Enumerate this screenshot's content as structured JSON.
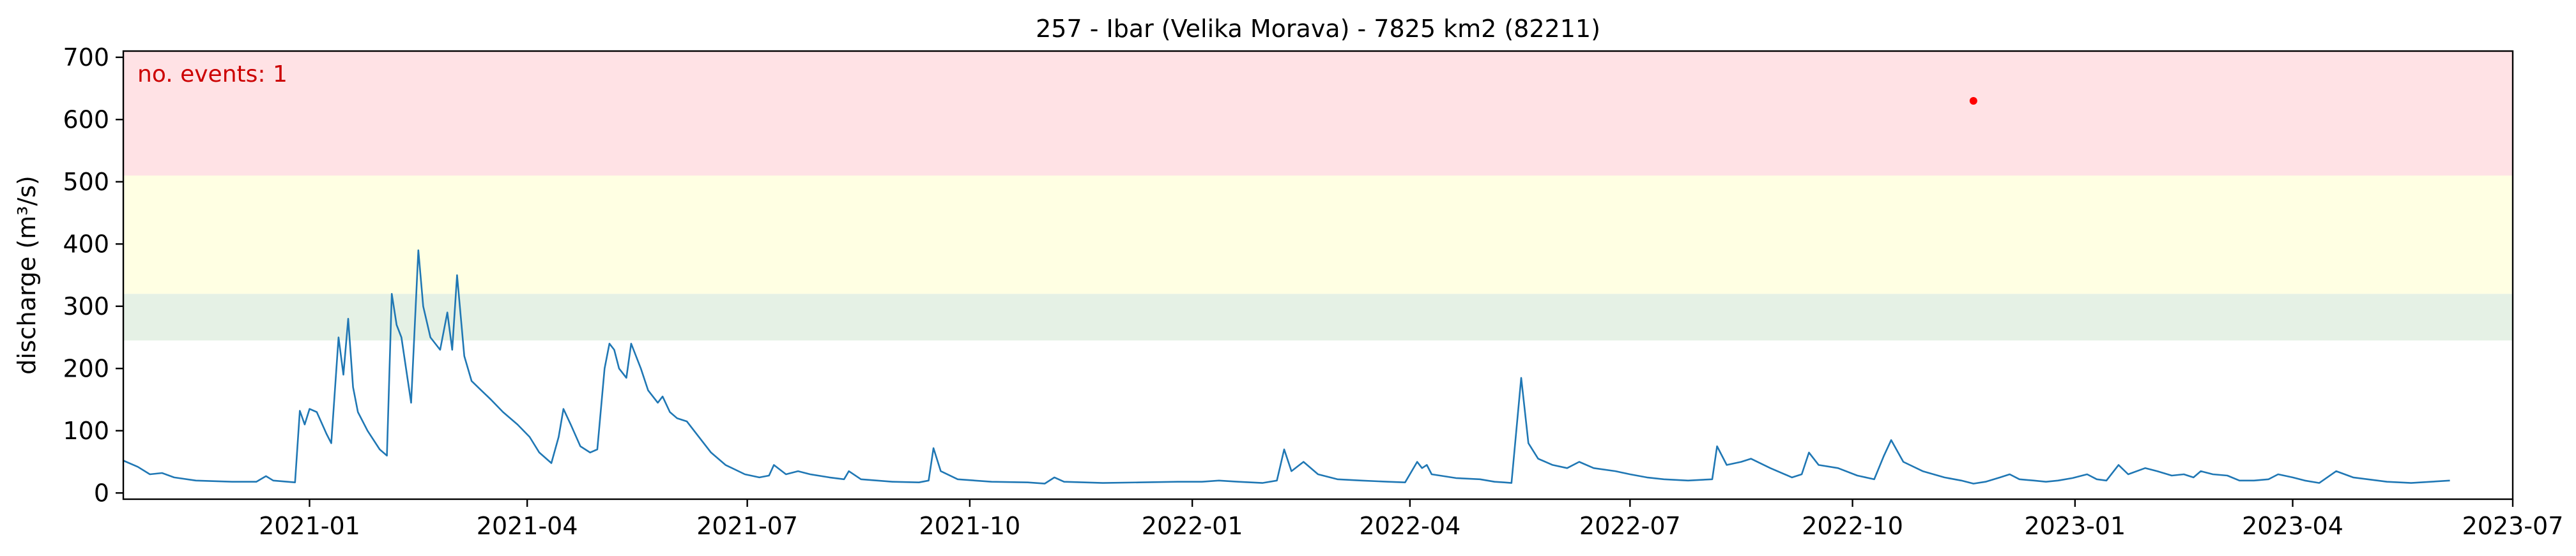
{
  "chart_data": {
    "type": "line",
    "title": "257 - Ibar (Velika Morava) - 7825 km2 (82211)",
    "xlabel": "",
    "ylabel": "discharge (m³/s)",
    "ylim": [
      -10,
      710
    ],
    "xlim": [
      "2020-10-16",
      "2023-07-01"
    ],
    "x_ticks": [
      {
        "date": "2021-01-01",
        "label": "2021-01"
      },
      {
        "date": "2021-04-01",
        "label": "2021-04"
      },
      {
        "date": "2021-07-01",
        "label": "2021-07"
      },
      {
        "date": "2021-10-01",
        "label": "2021-10"
      },
      {
        "date": "2022-01-01",
        "label": "2022-01"
      },
      {
        "date": "2022-04-01",
        "label": "2022-04"
      },
      {
        "date": "2022-07-01",
        "label": "2022-07"
      },
      {
        "date": "2022-10-01",
        "label": "2022-10"
      },
      {
        "date": "2023-01-01",
        "label": "2023-01"
      },
      {
        "date": "2023-04-01",
        "label": "2023-04"
      },
      {
        "date": "2023-07-01",
        "label": "2023-07"
      }
    ],
    "y_ticks": [
      0,
      100,
      200,
      300,
      400,
      500,
      600,
      700
    ],
    "grid": false,
    "threshold_bands": [
      {
        "from": 245,
        "to": 320,
        "color": "#e5f1e5"
      },
      {
        "from": 320,
        "to": 510,
        "color": "#ffffe3"
      },
      {
        "from": 510,
        "to": 710,
        "color": "#ffe2e5"
      }
    ],
    "annotation": {
      "text": "no. events: 1",
      "color": "#cc0000",
      "position": "top-left"
    },
    "events": [
      {
        "date": "2022-11-20",
        "value": 630,
        "color": "#ff0000"
      }
    ],
    "line_color": "#1f77b4",
    "series": [
      {
        "values": [
          [
            "2020-10-16",
            52
          ],
          [
            "2020-10-22",
            42
          ],
          [
            "2020-10-27",
            30
          ],
          [
            "2020-11-01",
            32
          ],
          [
            "2020-11-06",
            25
          ],
          [
            "2020-11-15",
            20
          ],
          [
            "2020-11-30",
            18
          ],
          [
            "2020-12-10",
            18
          ],
          [
            "2020-12-14",
            27
          ],
          [
            "2020-12-17",
            20
          ],
          [
            "2020-12-26",
            17
          ],
          [
            "2020-12-28",
            132
          ],
          [
            "2020-12-30",
            110
          ],
          [
            "2021-01-01",
            135
          ],
          [
            "2021-01-04",
            130
          ],
          [
            "2021-01-08",
            95
          ],
          [
            "2021-01-10",
            80
          ],
          [
            "2021-01-13",
            250
          ],
          [
            "2021-01-15",
            190
          ],
          [
            "2021-01-17",
            280
          ],
          [
            "2021-01-19",
            170
          ],
          [
            "2021-01-21",
            130
          ],
          [
            "2021-01-25",
            100
          ],
          [
            "2021-01-30",
            70
          ],
          [
            "2021-02-02",
            60
          ],
          [
            "2021-02-04",
            320
          ],
          [
            "2021-02-06",
            270
          ],
          [
            "2021-02-08",
            250
          ],
          [
            "2021-02-12",
            145
          ],
          [
            "2021-02-15",
            390
          ],
          [
            "2021-02-17",
            300
          ],
          [
            "2021-02-20",
            250
          ],
          [
            "2021-02-24",
            230
          ],
          [
            "2021-02-27",
            290
          ],
          [
            "2021-03-01",
            230
          ],
          [
            "2021-03-03",
            350
          ],
          [
            "2021-03-06",
            220
          ],
          [
            "2021-03-09",
            180
          ],
          [
            "2021-03-13",
            165
          ],
          [
            "2021-03-17",
            150
          ],
          [
            "2021-03-22",
            130
          ],
          [
            "2021-03-28",
            110
          ],
          [
            "2021-04-02",
            90
          ],
          [
            "2021-04-06",
            65
          ],
          [
            "2021-04-11",
            48
          ],
          [
            "2021-04-14",
            90
          ],
          [
            "2021-04-16",
            135
          ],
          [
            "2021-04-19",
            110
          ],
          [
            "2021-04-23",
            75
          ],
          [
            "2021-04-27",
            65
          ],
          [
            "2021-04-30",
            70
          ],
          [
            "2021-05-03",
            200
          ],
          [
            "2021-05-05",
            240
          ],
          [
            "2021-05-07",
            230
          ],
          [
            "2021-05-09",
            200
          ],
          [
            "2021-05-12",
            185
          ],
          [
            "2021-05-14",
            240
          ],
          [
            "2021-05-18",
            200
          ],
          [
            "2021-05-21",
            165
          ],
          [
            "2021-05-25",
            145
          ],
          [
            "2021-05-27",
            155
          ],
          [
            "2021-05-30",
            130
          ],
          [
            "2021-06-02",
            120
          ],
          [
            "2021-06-06",
            115
          ],
          [
            "2021-06-10",
            95
          ],
          [
            "2021-06-16",
            65
          ],
          [
            "2021-06-22",
            45
          ],
          [
            "2021-06-30",
            30
          ],
          [
            "2021-07-06",
            25
          ],
          [
            "2021-07-10",
            28
          ],
          [
            "2021-07-12",
            45
          ],
          [
            "2021-07-17",
            30
          ],
          [
            "2021-07-22",
            35
          ],
          [
            "2021-07-27",
            30
          ],
          [
            "2021-08-04",
            25
          ],
          [
            "2021-08-10",
            22
          ],
          [
            "2021-08-12",
            35
          ],
          [
            "2021-08-17",
            22
          ],
          [
            "2021-08-30",
            18
          ],
          [
            "2021-09-10",
            17
          ],
          [
            "2021-09-14",
            20
          ],
          [
            "2021-09-16",
            72
          ],
          [
            "2021-09-19",
            35
          ],
          [
            "2021-09-26",
            22
          ],
          [
            "2021-10-10",
            18
          ],
          [
            "2021-10-25",
            17
          ],
          [
            "2021-11-01",
            15
          ],
          [
            "2021-11-05",
            25
          ],
          [
            "2021-11-09",
            18
          ],
          [
            "2021-11-25",
            16
          ],
          [
            "2021-12-10",
            17
          ],
          [
            "2021-12-26",
            18
          ],
          [
            "2022-01-05",
            18
          ],
          [
            "2022-01-12",
            20
          ],
          [
            "2022-01-20",
            18
          ],
          [
            "2022-01-30",
            16
          ],
          [
            "2022-02-05",
            20
          ],
          [
            "2022-02-08",
            70
          ],
          [
            "2022-02-11",
            35
          ],
          [
            "2022-02-16",
            50
          ],
          [
            "2022-02-22",
            30
          ],
          [
            "2022-03-02",
            22
          ],
          [
            "2022-03-12",
            20
          ],
          [
            "2022-03-23",
            18
          ],
          [
            "2022-03-30",
            17
          ],
          [
            "2022-04-04",
            50
          ],
          [
            "2022-04-06",
            40
          ],
          [
            "2022-04-08",
            45
          ],
          [
            "2022-04-10",
            30
          ],
          [
            "2022-04-20",
            24
          ],
          [
            "2022-04-30",
            22
          ],
          [
            "2022-05-06",
            18
          ],
          [
            "2022-05-10",
            17
          ],
          [
            "2022-05-13",
            16
          ],
          [
            "2022-05-17",
            185
          ],
          [
            "2022-05-20",
            80
          ],
          [
            "2022-05-24",
            55
          ],
          [
            "2022-05-30",
            45
          ],
          [
            "2022-06-05",
            40
          ],
          [
            "2022-06-10",
            50
          ],
          [
            "2022-06-16",
            40
          ],
          [
            "2022-06-25",
            35
          ],
          [
            "2022-07-01",
            30
          ],
          [
            "2022-07-08",
            25
          ],
          [
            "2022-07-15",
            22
          ],
          [
            "2022-07-25",
            20
          ],
          [
            "2022-08-04",
            22
          ],
          [
            "2022-08-06",
            75
          ],
          [
            "2022-08-10",
            45
          ],
          [
            "2022-08-16",
            50
          ],
          [
            "2022-08-20",
            55
          ],
          [
            "2022-08-28",
            40
          ],
          [
            "2022-09-06",
            25
          ],
          [
            "2022-09-10",
            30
          ],
          [
            "2022-09-13",
            65
          ],
          [
            "2022-09-17",
            45
          ],
          [
            "2022-09-25",
            40
          ],
          [
            "2022-10-03",
            28
          ],
          [
            "2022-10-10",
            22
          ],
          [
            "2022-10-14",
            60
          ],
          [
            "2022-10-17",
            85
          ],
          [
            "2022-10-22",
            50
          ],
          [
            "2022-10-30",
            35
          ],
          [
            "2022-11-08",
            25
          ],
          [
            "2022-11-15",
            20
          ],
          [
            "2022-11-20",
            15
          ],
          [
            "2022-11-25",
            18
          ],
          [
            "2022-12-01",
            25
          ],
          [
            "2022-12-05",
            30
          ],
          [
            "2022-12-09",
            22
          ],
          [
            "2022-12-15",
            20
          ],
          [
            "2022-12-20",
            18
          ],
          [
            "2022-12-25",
            20
          ],
          [
            "2022-12-31",
            24
          ],
          [
            "2023-01-06",
            30
          ],
          [
            "2023-01-10",
            22
          ],
          [
            "2023-01-14",
            20
          ],
          [
            "2023-01-19",
            45
          ],
          [
            "2023-01-23",
            30
          ],
          [
            "2023-01-30",
            40
          ],
          [
            "2023-02-04",
            35
          ],
          [
            "2023-02-10",
            28
          ],
          [
            "2023-02-15",
            30
          ],
          [
            "2023-02-19",
            25
          ],
          [
            "2023-02-22",
            35
          ],
          [
            "2023-02-27",
            30
          ],
          [
            "2023-03-05",
            28
          ],
          [
            "2023-03-10",
            20
          ],
          [
            "2023-03-16",
            20
          ],
          [
            "2023-03-22",
            22
          ],
          [
            "2023-03-26",
            30
          ],
          [
            "2023-04-01",
            25
          ],
          [
            "2023-04-06",
            20
          ],
          [
            "2023-04-12",
            16
          ],
          [
            "2023-04-19",
            35
          ],
          [
            "2023-04-26",
            25
          ],
          [
            "2023-05-02",
            22
          ],
          [
            "2023-05-10",
            18
          ],
          [
            "2023-05-20",
            16
          ],
          [
            "2023-06-05",
            20
          ]
        ]
      }
    ]
  }
}
